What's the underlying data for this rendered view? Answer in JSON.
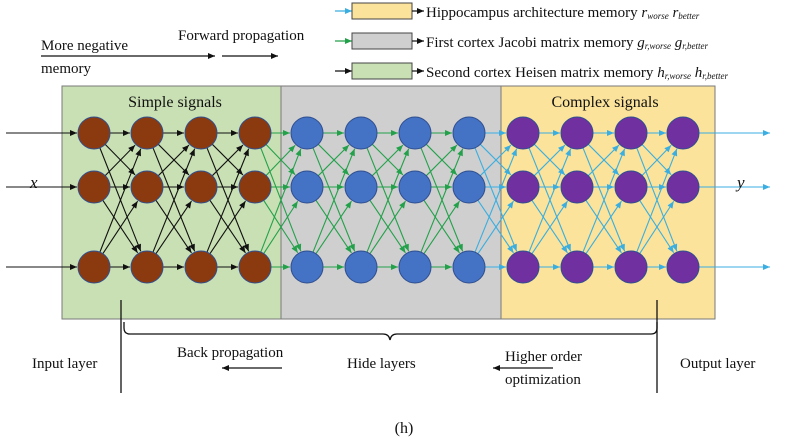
{
  "legend": {
    "items": [
      {
        "text": "Hippocampus architecture memory ",
        "math": [
          [
            "r",
            "worse"
          ],
          [
            "r",
            "better"
          ]
        ],
        "fill": "#fbe39b",
        "arrow": "#3aaee0"
      },
      {
        "text": "First cortex Jacobi matrix memory ",
        "math": [
          [
            "g",
            "r,worse"
          ],
          [
            "g",
            "r,better"
          ]
        ],
        "fill": "#cfcfcf",
        "arrow": "#23a14a"
      },
      {
        "text": "Second cortex Heisen matrix memory ",
        "math": [
          [
            "h",
            "r,worse"
          ],
          [
            "h",
            "r,better"
          ]
        ],
        "fill": "#c9e0b4",
        "arrow": "#111111"
      }
    ]
  },
  "top_labels": {
    "more_negative_line1": "More negative",
    "more_negative_line2": "memory",
    "forward": "Forward propagation"
  },
  "regions": {
    "simple": {
      "label": "Simple signals",
      "fill": "#c9e0b4"
    },
    "hidden": {
      "label": "",
      "fill": "#cfcfcf"
    },
    "complex": {
      "label": "Complex signals",
      "fill": "#fbe39b"
    }
  },
  "io": {
    "x": "x",
    "y": "y"
  },
  "neurons": {
    "brown": "#8b3a10",
    "blue": "#4472c4",
    "purple": "#7030a0"
  },
  "edges": {
    "simple": "#111111",
    "to_hidden": "#23a14a",
    "hidden": "#23a14a",
    "to_complex": "#3aaee0",
    "complex": "#3aaee0",
    "output": "#3aaee0"
  },
  "bottom_labels": {
    "input_layer": "Input layer",
    "back_propagation": "Back propagation",
    "hide_layers": "Hide layers",
    "higher_line1": "Higher order",
    "higher_line2": "optimization",
    "output_layer": "Output layer"
  },
  "caption": "(h)"
}
